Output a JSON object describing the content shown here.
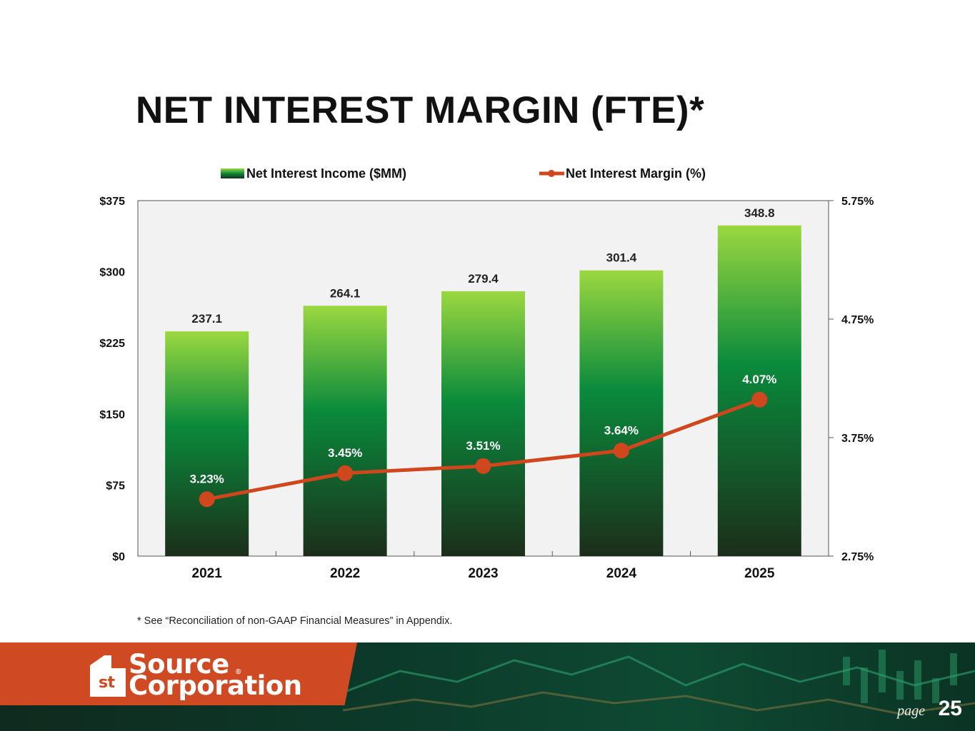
{
  "title": "NET INTEREST MARGIN (FTE)*",
  "footnote": "* See “Reconciliation of non-GAAP Financial Measures” in Appendix.",
  "footer": {
    "logo_line1": "Source",
    "logo_line2": "Corporation",
    "logo_mark": "st",
    "logo_reg": "®",
    "page_label": "page",
    "page_number": "25"
  },
  "colors": {
    "bar_top": "#9bd840",
    "bar_mid": "#0a8a3c",
    "bar_bottom": "#1c2e1a",
    "line": "#d0461d",
    "plot_bg": "#f2f2f2",
    "brand_orange": "#cf4a22",
    "footer_green": "#0e4a33"
  },
  "chart_data": {
    "type": "bar",
    "categories": [
      "2021",
      "2022",
      "2023",
      "2024",
      "2025"
    ],
    "series": [
      {
        "name": "Net Interest Income ($MM)",
        "type": "bar",
        "axis": "left",
        "values": [
          237.1,
          264.1,
          279.4,
          301.4,
          348.8
        ],
        "labels": [
          "237.1",
          "264.1",
          "279.4",
          "301.4",
          "348.8"
        ]
      },
      {
        "name": "Net Interest Margin (%)",
        "type": "line",
        "axis": "right",
        "values": [
          3.23,
          3.45,
          3.51,
          3.64,
          4.07
        ],
        "labels": [
          "3.23%",
          "3.45%",
          "3.51%",
          "3.64%",
          "4.07%"
        ]
      }
    ],
    "y_left": {
      "min": 0,
      "max": 375,
      "ticks": [
        0,
        75,
        150,
        225,
        300,
        375
      ],
      "tick_labels": [
        "$0",
        "$75",
        "$150",
        "$225",
        "$300",
        "$375"
      ]
    },
    "y_right": {
      "min": 2.75,
      "max": 5.75,
      "ticks": [
        2.75,
        3.75,
        4.75,
        5.75
      ],
      "tick_labels": [
        "2.75%",
        "3.75%",
        "4.75%",
        "5.75%"
      ]
    },
    "legend_position": "top-center",
    "grid": false
  }
}
